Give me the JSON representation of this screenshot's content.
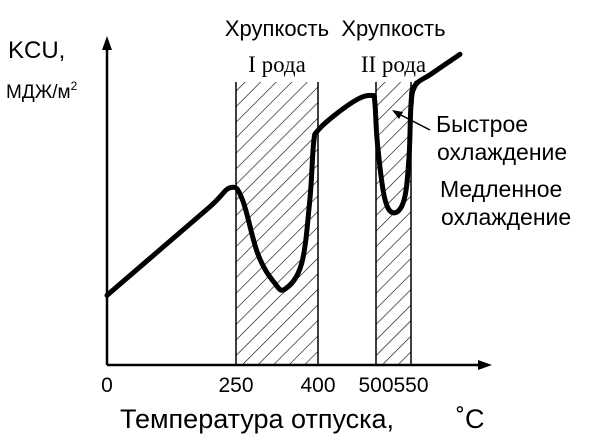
{
  "chart_data": {
    "type": "line",
    "xlabel": "Температура отпуска,",
    "xunit": "˚С",
    "ylabel": "KCU,",
    "yunit": "МДЖ/м",
    "yunit_sup": "2",
    "x_ticks": [
      0,
      250,
      400,
      500,
      550
    ],
    "xlim": [
      0,
      660
    ],
    "grid": false,
    "legend": "none",
    "bands": [
      {
        "x_from": 250,
        "x_to": 400,
        "label_line1": "Хрупкость",
        "label_line2": "I рода",
        "hatch": true
      },
      {
        "x_from": 500,
        "x_to": 550,
        "label_line1": "Хрупкость",
        "label_line2": "II рода",
        "hatch": true
      }
    ],
    "series": [
      {
        "values": [
          [
            0,
            0.22
          ],
          [
            100,
            0.36
          ],
          [
            200,
            0.5
          ],
          [
            240,
            0.56
          ],
          [
            262,
            0.52
          ],
          [
            290,
            0.35
          ],
          [
            320,
            0.26
          ],
          [
            340,
            0.24
          ],
          [
            370,
            0.32
          ],
          [
            385,
            0.52
          ],
          [
            392,
            0.7
          ],
          [
            400,
            0.74
          ],
          [
            430,
            0.79
          ],
          [
            470,
            0.84
          ],
          [
            493,
            0.85
          ],
          [
            498,
            0.83
          ],
          [
            502,
            0.7
          ],
          [
            512,
            0.53
          ],
          [
            525,
            0.48
          ],
          [
            540,
            0.52
          ],
          [
            547,
            0.65
          ],
          [
            550,
            0.82
          ],
          [
            555,
            0.88
          ],
          [
            580,
            0.92
          ],
          [
            620,
            0.98
          ]
        ]
      },
      {
        "values": [
          [
            550,
            0.82
          ],
          [
            552,
            0.86
          ],
          [
            558,
            0.89
          ]
        ]
      }
    ],
    "annotations": [
      {
        "text": "Быстрое",
        "text2": "охлаждение"
      },
      {
        "text": "Медленное",
        "text2": "охлаждение"
      }
    ]
  }
}
